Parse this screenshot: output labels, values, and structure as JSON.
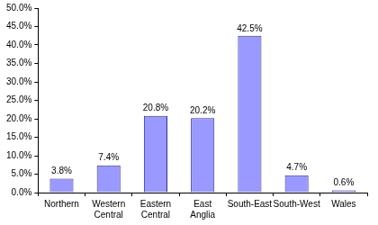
{
  "chart_data": {
    "type": "bar",
    "categories": [
      "Northern",
      "Western Central",
      "Eastern Central",
      "East Anglia",
      "South-East",
      "South-West",
      "Wales"
    ],
    "values": [
      3.8,
      7.4,
      20.8,
      20.2,
      42.5,
      4.7,
      0.6
    ],
    "value_labels": [
      "3.8%",
      "7.4%",
      "20.8%",
      "20.2%",
      "42.5%",
      "4.7%",
      "0.6%"
    ],
    "data_labels": true,
    "color": "#9999ff",
    "ylim": [
      0,
      50
    ],
    "yticks": [
      {
        "value": 0,
        "label": "0.0%"
      },
      {
        "value": 5,
        "label": "5.0%"
      },
      {
        "value": 10,
        "label": "10.0%"
      },
      {
        "value": 15,
        "label": "15.0%"
      },
      {
        "value": 20,
        "label": "20.0%"
      },
      {
        "value": 25,
        "label": "25.0%"
      },
      {
        "value": 30,
        "label": "30.0%"
      },
      {
        "value": 35,
        "label": "35.0%"
      },
      {
        "value": 40,
        "label": "40.0%"
      },
      {
        "value": 45,
        "label": "45.0%"
      },
      {
        "value": 50,
        "label": "50.0%"
      }
    ],
    "grid": false
  }
}
